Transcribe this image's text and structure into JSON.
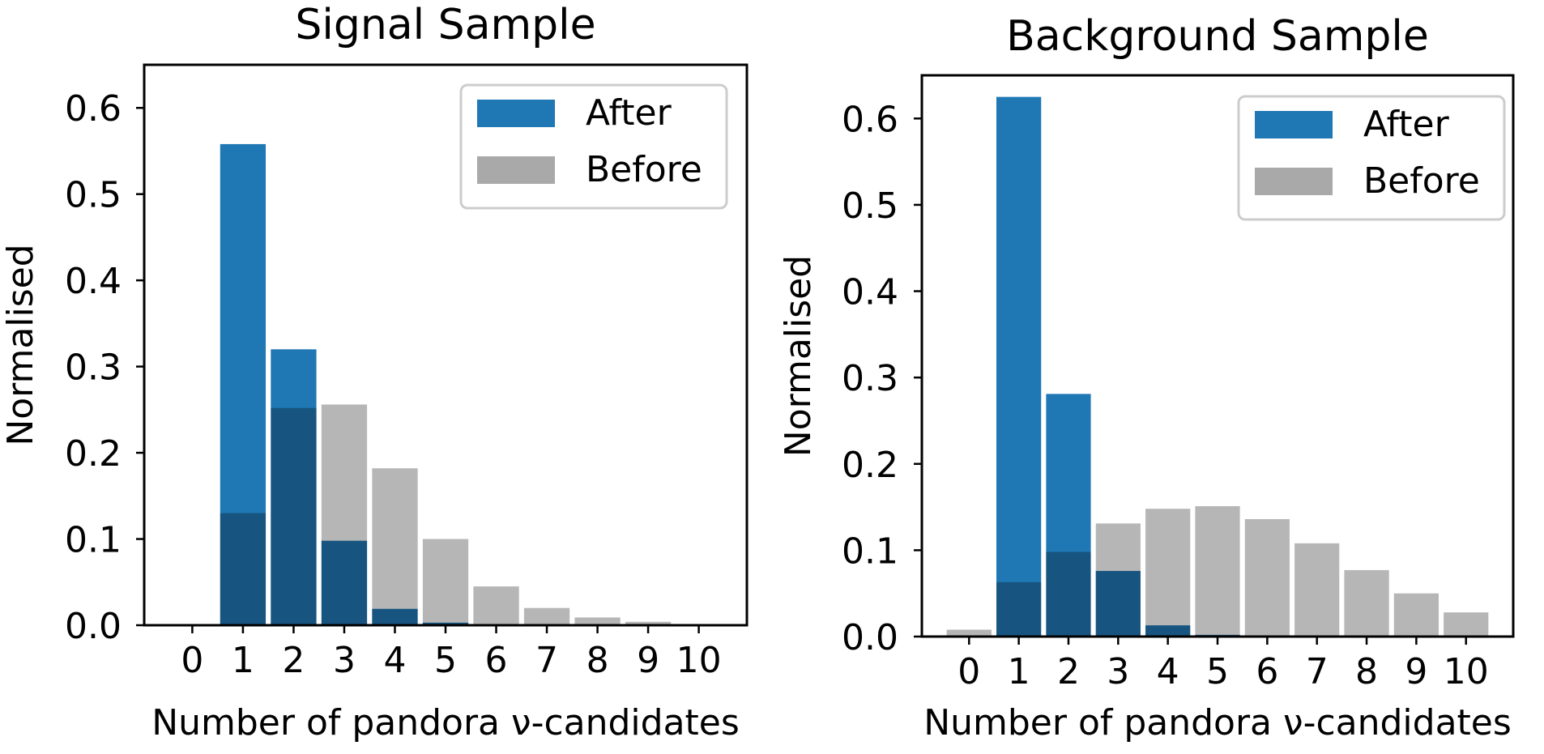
{
  "chart_data": [
    {
      "type": "bar",
      "title": "Signal Sample",
      "xlabel": "Number of pandora ν-candidates",
      "ylabel": "Normalised",
      "categories": [
        "0",
        "1",
        "2",
        "3",
        "4",
        "5",
        "6",
        "7",
        "8",
        "9",
        "10"
      ],
      "yticks": [
        "0.0",
        "0.1",
        "0.2",
        "0.3",
        "0.4",
        "0.5",
        "0.6"
      ],
      "ylim": [
        0,
        0.65
      ],
      "legend_position": "top-right",
      "series": [
        {
          "name": "After",
          "color": "#1f77b4",
          "values": [
            0.0,
            0.558,
            0.32,
            0.098,
            0.019,
            0.003,
            0.0,
            0.0,
            0.0,
            0.0,
            0.0
          ]
        },
        {
          "name": "Before",
          "color": "#a9a9a9",
          "values": [
            0.0,
            0.13,
            0.252,
            0.256,
            0.182,
            0.1,
            0.045,
            0.02,
            0.009,
            0.004,
            0.001
          ]
        }
      ]
    },
    {
      "type": "bar",
      "title": "Background Sample",
      "xlabel": "Number of pandora ν-candidates",
      "ylabel": "Normalised",
      "categories": [
        "0",
        "1",
        "2",
        "3",
        "4",
        "5",
        "6",
        "7",
        "8",
        "9",
        "10"
      ],
      "yticks": [
        "0.0",
        "0.1",
        "0.2",
        "0.3",
        "0.4",
        "0.5",
        "0.6"
      ],
      "ylim": [
        0,
        0.65
      ],
      "legend_position": "top-right",
      "series": [
        {
          "name": "After",
          "color": "#1f77b4",
          "values": [
            0.0,
            0.625,
            0.281,
            0.076,
            0.013,
            0.002,
            0.0,
            0.0,
            0.0,
            0.0,
            0.0
          ]
        },
        {
          "name": "Before",
          "color": "#a9a9a9",
          "values": [
            0.008,
            0.063,
            0.098,
            0.131,
            0.148,
            0.151,
            0.136,
            0.108,
            0.077,
            0.05,
            0.028
          ]
        }
      ]
    }
  ]
}
